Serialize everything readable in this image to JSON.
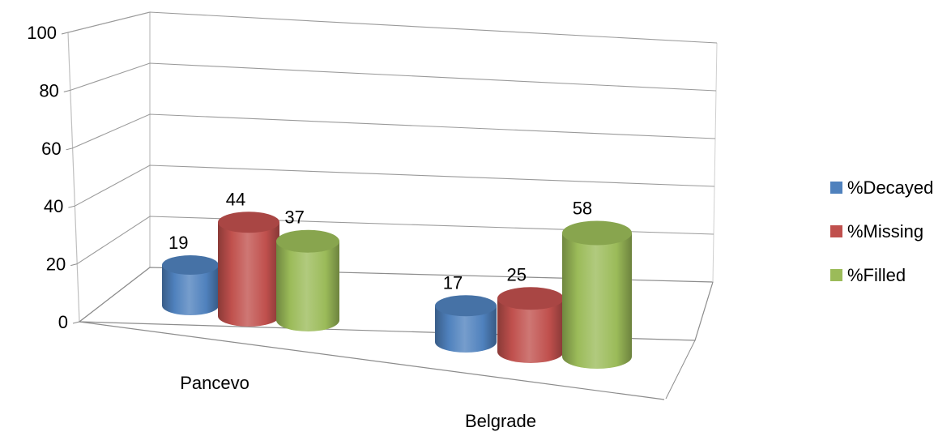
{
  "chart_data": {
    "type": "bar",
    "title": "",
    "xlabel": "",
    "ylabel": "",
    "categories": [
      "Pancevo",
      "Belgrade"
    ],
    "series": [
      {
        "name": "%Decayed",
        "values": [
          19,
          17
        ],
        "color": "#4f81bd"
      },
      {
        "name": "%Missing",
        "values": [
          44,
          25
        ],
        "color": "#c0504d"
      },
      {
        "name": "%Filled",
        "values": [
          37,
          58
        ],
        "color": "#9bbb59"
      }
    ],
    "ylim": [
      0,
      100
    ],
    "yticks": [
      "0",
      "20",
      "40",
      "60",
      "80",
      "100"
    ],
    "grid": true,
    "legend_position": "right",
    "bar_shape": "3d-cylinder"
  }
}
